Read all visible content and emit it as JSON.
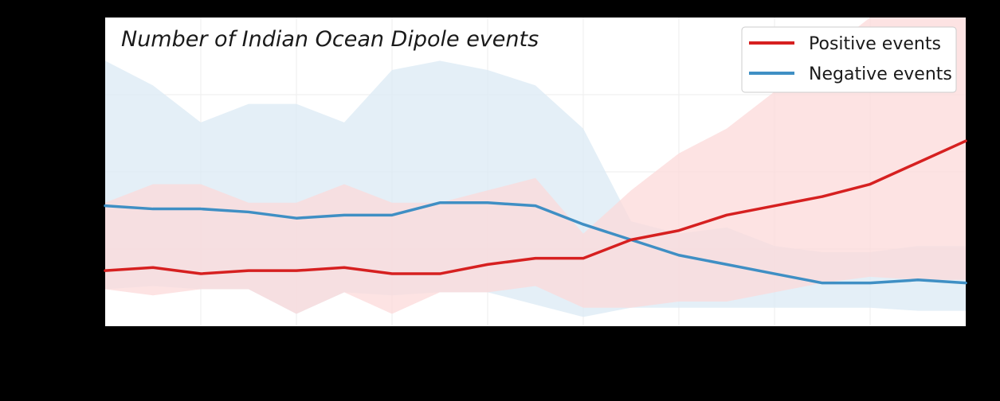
{
  "chart_data": {
    "type": "line",
    "title": "Number of Indian Ocean Dipole events",
    "xlabel": "",
    "ylabel": "",
    "x_range": [
      0,
      180
    ],
    "y_range": [
      0,
      1
    ],
    "grid": true,
    "legend_position": "top-right",
    "colors": {
      "positive": "#d62020",
      "negative": "#3f8fc4",
      "positive_band": "#fcd9d9",
      "negative_band": "#dbe9f4",
      "plot_bg": "#ffffff",
      "frame_bg": "#000000"
    },
    "series": [
      {
        "name": "Positive events",
        "key": "positive",
        "x": [
          0,
          10,
          20,
          30,
          40,
          50,
          60,
          70,
          80,
          90,
          100,
          110,
          120,
          130,
          140,
          150,
          160,
          170,
          180
        ],
        "values": [
          0.18,
          0.19,
          0.17,
          0.18,
          0.18,
          0.19,
          0.17,
          0.17,
          0.2,
          0.22,
          0.22,
          0.28,
          0.31,
          0.36,
          0.39,
          0.42,
          0.46,
          0.53,
          0.6
        ],
        "lower": [
          0.12,
          0.1,
          0.12,
          0.12,
          0.04,
          0.11,
          0.04,
          0.11,
          0.11,
          0.13,
          0.06,
          0.06,
          0.08,
          0.08,
          0.11,
          0.14,
          0.16,
          0.15,
          0.15
        ],
        "upper": [
          0.4,
          0.46,
          0.46,
          0.4,
          0.4,
          0.46,
          0.4,
          0.4,
          0.44,
          0.48,
          0.3,
          0.44,
          0.56,
          0.64,
          0.76,
          0.88,
          1.0,
          1.0,
          1.0
        ]
      },
      {
        "name": "Negative events",
        "key": "negative",
        "x": [
          0,
          10,
          20,
          30,
          40,
          50,
          60,
          70,
          80,
          90,
          100,
          110,
          120,
          130,
          140,
          150,
          160,
          170,
          180
        ],
        "values": [
          0.39,
          0.38,
          0.38,
          0.37,
          0.35,
          0.36,
          0.36,
          0.4,
          0.4,
          0.39,
          0.33,
          0.28,
          0.23,
          0.2,
          0.17,
          0.14,
          0.14,
          0.15,
          0.14
        ],
        "lower": [
          0.12,
          0.13,
          0.12,
          0.12,
          0.04,
          0.11,
          0.1,
          0.11,
          0.11,
          0.07,
          0.03,
          0.06,
          0.06,
          0.06,
          0.06,
          0.06,
          0.06,
          0.05,
          0.05
        ],
        "upper": [
          0.86,
          0.78,
          0.66,
          0.72,
          0.72,
          0.66,
          0.83,
          0.86,
          0.83,
          0.78,
          0.64,
          0.34,
          0.3,
          0.32,
          0.26,
          0.24,
          0.24,
          0.26,
          0.26
        ]
      }
    ]
  }
}
